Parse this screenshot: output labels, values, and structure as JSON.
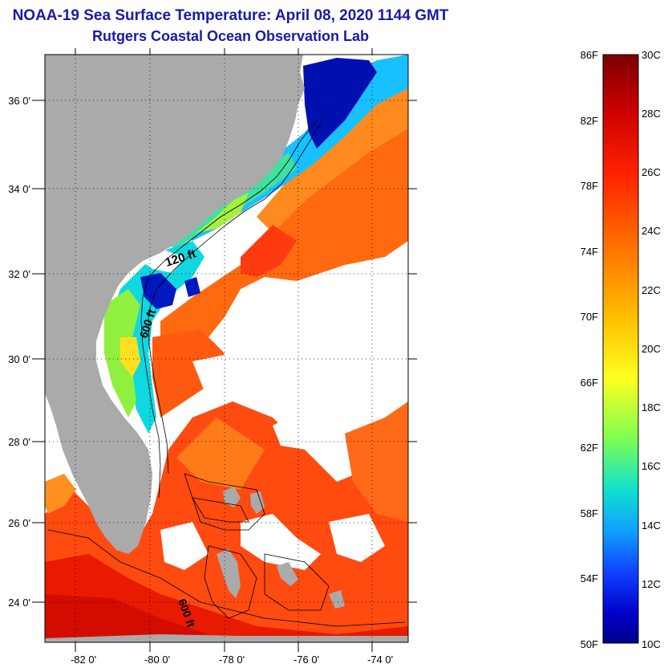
{
  "title": "NOAA-19 Sea Surface Temperature:  April 08, 2020 1144 GMT",
  "subtitle": "Rutgers Coastal Ocean Observation Lab",
  "map": {
    "lat_labels": [
      "36 0'",
      "34 0'",
      "32 0'",
      "30 0'",
      "28 0'",
      "26 0'",
      "24 0'"
    ],
    "lon_labels": [
      "-82 0'",
      "-80 0'",
      "-78 0'",
      "-76 0'",
      "-74 0'"
    ],
    "contour_labels": [
      "120 ft",
      "600 ft",
      "600 ft"
    ],
    "colors": {
      "land": "#aaaaaa",
      "cloud": "#ffffff"
    }
  },
  "colorbar": {
    "f_labels": [
      "86F",
      "82F",
      "78F",
      "74F",
      "70F",
      "66F",
      "62F",
      "58F",
      "54F",
      "50F"
    ],
    "c_labels": [
      "30C",
      "28C",
      "26C",
      "24C",
      "22C",
      "20C",
      "18C",
      "16C",
      "14C",
      "12C",
      "10C"
    ],
    "gradient": [
      "#7a0000",
      "#c80000",
      "#ff2000",
      "#ff7a00",
      "#ffc000",
      "#ffff20",
      "#7fff50",
      "#10e0d0",
      "#10a0ff",
      "#1040ff",
      "#0000c8",
      "#00008a"
    ]
  }
}
